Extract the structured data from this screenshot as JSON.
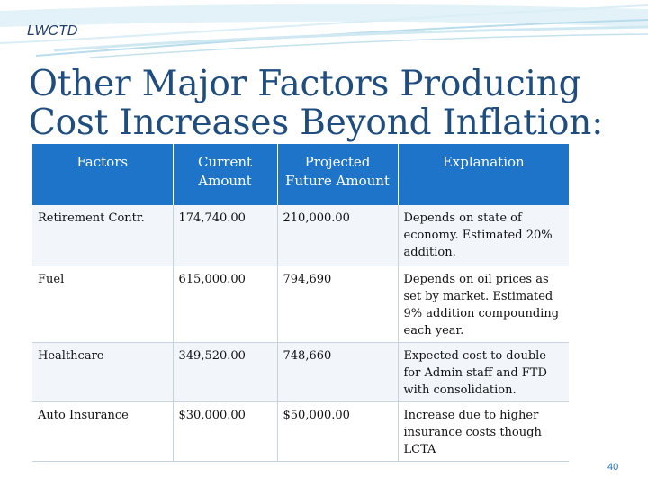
{
  "header": {
    "brand": "LWCTD"
  },
  "title": "Other Major Factors Producing Cost Increases Beyond Inflation:",
  "table": {
    "columns": [
      "Factors",
      "Current Amount",
      "Projected Future Amount",
      "Explanation"
    ],
    "rows": [
      {
        "factor": "Retirement Contr.",
        "current": "174,740.00",
        "projected": "210,000.00",
        "explanation": "Depends on state of economy. Estimated 20% addition."
      },
      {
        "factor": "Fuel",
        "current": "615,000.00",
        "projected": "794,690",
        "explanation": "Depends on oil prices as set by market. Estimated 9% addition compounding each year."
      },
      {
        "factor": "Healthcare",
        "current": "349,520.00",
        "projected": "748,660",
        "explanation": "Expected cost to double for Admin staff and FTD with consolidation."
      },
      {
        "factor": "Auto Insurance",
        "current": "$30,000.00",
        "projected": "$50,000.00",
        "explanation": "Increase due to higher insurance costs though LCTA"
      }
    ]
  },
  "footer": {
    "page_number": "40"
  },
  "colors": {
    "header_fill": "#1e74c9",
    "title": "#1f4d7f",
    "swoosh": "#b8dcec"
  }
}
